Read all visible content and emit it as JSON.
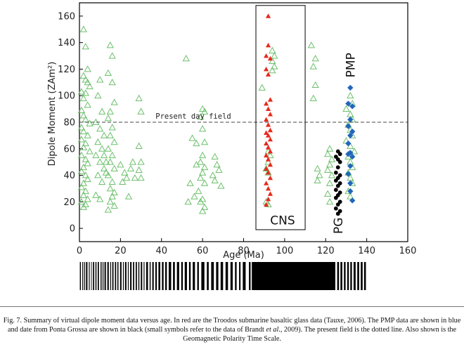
{
  "chart_data": {
    "type": "scatter",
    "xlabel": "Age (Ma)",
    "ylabel": "Dipole Moment (ZAm²)",
    "xlim": [
      0,
      160
    ],
    "ylim": [
      -10,
      170
    ],
    "x_ticks": [
      "0",
      "20",
      "40",
      "60",
      "80",
      "100",
      "120",
      "140",
      "160"
    ],
    "y_ticks": [
      "0",
      "20",
      "40",
      "60",
      "80",
      "100",
      "120",
      "140",
      "160"
    ],
    "grid": false,
    "reference_line": {
      "y": 80,
      "style": "dashed",
      "label": "Present day field"
    },
    "cns_box": {
      "x0": 86,
      "x1": 110,
      "y0": -1,
      "y1": 168,
      "label": "CNS"
    },
    "labels": {
      "pg": "PG",
      "pmp": "PMP"
    },
    "series": [
      {
        "name": "",
        "marker": "open-triangle",
        "color": "#6cc06c",
        "points": [
          [
            2,
            150
          ],
          [
            3,
            137
          ],
          [
            4,
            120
          ],
          [
            2,
            115
          ],
          [
            3,
            112
          ],
          [
            4,
            110
          ],
          [
            5,
            107
          ],
          [
            1,
            103
          ],
          [
            3,
            102
          ],
          [
            2,
            98
          ],
          [
            4,
            93
          ],
          [
            1,
            89
          ],
          [
            2,
            85
          ],
          [
            3,
            82
          ],
          [
            5,
            79
          ],
          [
            1,
            76
          ],
          [
            2,
            73
          ],
          [
            4,
            70
          ],
          [
            1,
            67
          ],
          [
            3,
            64
          ],
          [
            2,
            61
          ],
          [
            5,
            58
          ],
          [
            1,
            55
          ],
          [
            3,
            52
          ],
          [
            4,
            49
          ],
          [
            2,
            46
          ],
          [
            1,
            43
          ],
          [
            3,
            40
          ],
          [
            4,
            37
          ],
          [
            2,
            34
          ],
          [
            1,
            31
          ],
          [
            3,
            28
          ],
          [
            2,
            25
          ],
          [
            4,
            22
          ],
          [
            1,
            20
          ],
          [
            3,
            18
          ],
          [
            2,
            16
          ],
          [
            10,
            112
          ],
          [
            9,
            100
          ],
          [
            11,
            88
          ],
          [
            8,
            80
          ],
          [
            10,
            75
          ],
          [
            12,
            70
          ],
          [
            9,
            65
          ],
          [
            11,
            60
          ],
          [
            8,
            55
          ],
          [
            10,
            50
          ],
          [
            12,
            45
          ],
          [
            9,
            40
          ],
          [
            11,
            35
          ],
          [
            8,
            25
          ],
          [
            10,
            22
          ],
          [
            12,
            55
          ],
          [
            13,
            50
          ],
          [
            13,
            42
          ],
          [
            15,
            138
          ],
          [
            16,
            130
          ],
          [
            14,
            117
          ],
          [
            16,
            110
          ],
          [
            17,
            95
          ],
          [
            15,
            88
          ],
          [
            14,
            83
          ],
          [
            16,
            76
          ],
          [
            15,
            70
          ],
          [
            17,
            65
          ],
          [
            14,
            60
          ],
          [
            16,
            55
          ],
          [
            15,
            50
          ],
          [
            17,
            45
          ],
          [
            14,
            40
          ],
          [
            16,
            35
          ],
          [
            15,
            30
          ],
          [
            17,
            27
          ],
          [
            16,
            24
          ],
          [
            15,
            20
          ],
          [
            17,
            17
          ],
          [
            14,
            14
          ],
          [
            20,
            48
          ],
          [
            22,
            42
          ],
          [
            23,
            38
          ],
          [
            21,
            35
          ],
          [
            24,
            24
          ],
          [
            25,
            45
          ],
          [
            26,
            50
          ],
          [
            27,
            38
          ],
          [
            29,
            98
          ],
          [
            30,
            88
          ],
          [
            29,
            62
          ],
          [
            30,
            50
          ],
          [
            29,
            44
          ],
          [
            30,
            38
          ],
          [
            52,
            128
          ],
          [
            54,
            34
          ],
          [
            55,
            68
          ],
          [
            56,
            24
          ],
          [
            57,
            64
          ],
          [
            58,
            28
          ],
          [
            53,
            20
          ],
          [
            57,
            48
          ],
          [
            60,
            90
          ],
          [
            61,
            88
          ],
          [
            59,
            84
          ],
          [
            60,
            75
          ],
          [
            61,
            65
          ],
          [
            60,
            55
          ],
          [
            59,
            50
          ],
          [
            61,
            46
          ],
          [
            60,
            42
          ],
          [
            59,
            38
          ],
          [
            61,
            34
          ],
          [
            60,
            22
          ],
          [
            59,
            20
          ],
          [
            61,
            16
          ],
          [
            60,
            13
          ],
          [
            66,
            54
          ],
          [
            67,
            48
          ],
          [
            65,
            40
          ],
          [
            68,
            44
          ],
          [
            66,
            36
          ],
          [
            69,
            32
          ],
          [
            89,
            106
          ],
          [
            92,
            58
          ],
          [
            93,
            55
          ],
          [
            92,
            50
          ],
          [
            91,
            45
          ],
          [
            92,
            42
          ],
          [
            91,
            20
          ],
          [
            92,
            18
          ],
          [
            94,
            134
          ],
          [
            95,
            130
          ],
          [
            94,
            126
          ],
          [
            95,
            122
          ],
          [
            94,
            119
          ],
          [
            113,
            138
          ],
          [
            115,
            128
          ],
          [
            114,
            122
          ],
          [
            115,
            108
          ],
          [
            114,
            98
          ],
          [
            116,
            45
          ],
          [
            117,
            40
          ],
          [
            116,
            36
          ],
          [
            122,
            60
          ],
          [
            121,
            56
          ],
          [
            123,
            52
          ],
          [
            122,
            48
          ],
          [
            121,
            44
          ],
          [
            123,
            40
          ],
          [
            122,
            34
          ],
          [
            121,
            26
          ],
          [
            122,
            20
          ],
          [
            132,
            100
          ],
          [
            133,
            94
          ],
          [
            130,
            90
          ],
          [
            132,
            86
          ],
          [
            133,
            82
          ],
          [
            131,
            78
          ],
          [
            132,
            74
          ],
          [
            133,
            70
          ],
          [
            130,
            66
          ],
          [
            132,
            62
          ],
          [
            134,
            58
          ],
          [
            131,
            54
          ],
          [
            132,
            50
          ],
          [
            133,
            46
          ],
          [
            131,
            42
          ],
          [
            132,
            38
          ],
          [
            133,
            34
          ],
          [
            131,
            28
          ],
          [
            132,
            24
          ]
        ]
      },
      {
        "name": "",
        "marker": "filled-triangle",
        "color": "#e8281c",
        "points": [
          [
            92,
            160
          ],
          [
            92,
            138
          ],
          [
            91,
            130
          ],
          [
            93,
            128
          ],
          [
            91,
            120
          ],
          [
            92,
            116
          ],
          [
            93,
            97
          ],
          [
            91,
            94
          ],
          [
            92,
            90
          ],
          [
            93,
            86
          ],
          [
            91,
            82
          ],
          [
            92,
            78
          ],
          [
            93,
            74
          ],
          [
            91,
            72
          ],
          [
            92,
            70
          ],
          [
            93,
            67
          ],
          [
            91,
            64
          ],
          [
            92,
            61
          ],
          [
            93,
            58
          ],
          [
            91,
            55
          ],
          [
            92,
            52
          ],
          [
            93,
            48
          ],
          [
            91,
            45
          ],
          [
            92,
            42
          ],
          [
            93,
            38
          ],
          [
            91,
            34
          ],
          [
            92,
            30
          ],
          [
            93,
            26
          ],
          [
            92,
            22
          ],
          [
            91,
            18
          ]
        ]
      },
      {
        "name": "",
        "marker": "filled-diamond",
        "color": "#2266bb",
        "points": [
          [
            132,
            106
          ],
          [
            131,
            94
          ],
          [
            133,
            92
          ],
          [
            132,
            82
          ],
          [
            131,
            77
          ],
          [
            133,
            73
          ],
          [
            132,
            70
          ],
          [
            131,
            64
          ],
          [
            132,
            57
          ],
          [
            131,
            56
          ],
          [
            133,
            54
          ],
          [
            132,
            47
          ],
          [
            131,
            41
          ],
          [
            132,
            34
          ],
          [
            132,
            28
          ],
          [
            133,
            21
          ]
        ]
      },
      {
        "name": "",
        "marker": "filled-circle",
        "color": "#000000",
        "points": [
          [
            126,
            58
          ],
          [
            127,
            56
          ],
          [
            125,
            54
          ],
          [
            126,
            52
          ],
          [
            127,
            50
          ],
          [
            126,
            46
          ],
          [
            125,
            42
          ],
          [
            127,
            40
          ],
          [
            126,
            38
          ],
          [
            125,
            36
          ],
          [
            127,
            34
          ],
          [
            126,
            32
          ],
          [
            125,
            29
          ],
          [
            127,
            27
          ],
          [
            126,
            25
          ],
          [
            125,
            23
          ],
          [
            127,
            20
          ],
          [
            126,
            18
          ],
          [
            125,
            15
          ],
          [
            127,
            13
          ],
          [
            126,
            11
          ]
        ]
      }
    ]
  },
  "gpts": {
    "xlim": [
      0,
      160
    ],
    "intervals": [
      [
        0.2,
        0.7
      ],
      [
        1.4,
        1.8
      ],
      [
        2.3,
        2.7
      ],
      [
        3.2,
        3.9
      ],
      [
        4.6,
        5.0
      ],
      [
        5.7,
        6.0
      ],
      [
        6.6,
        7.2
      ],
      [
        7.8,
        8.3
      ],
      [
        8.9,
        9.5
      ],
      [
        10.3,
        10.8
      ],
      [
        11.3,
        11.7
      ],
      [
        12.2,
        12.9
      ],
      [
        13.6,
        14.3
      ],
      [
        15.0,
        15.4
      ],
      [
        16.0,
        16.6
      ],
      [
        17.3,
        17.9
      ],
      [
        18.5,
        19.0
      ],
      [
        19.8,
        20.5
      ],
      [
        21.2,
        21.6
      ],
      [
        22.2,
        22.9
      ],
      [
        23.6,
        24.0
      ],
      [
        24.7,
        25.4
      ],
      [
        26.1,
        26.7
      ],
      [
        27.4,
        28.0
      ],
      [
        28.7,
        29.2
      ],
      [
        29.9,
        30.6
      ],
      [
        31.3,
        31.7
      ],
      [
        32.5,
        33.4
      ],
      [
        34.2,
        34.7
      ],
      [
        35.5,
        36.2
      ],
      [
        37.0,
        37.7
      ],
      [
        38.5,
        39.4
      ],
      [
        40.2,
        41.0
      ],
      [
        41.8,
        42.6
      ],
      [
        43.5,
        44.7
      ],
      [
        45.6,
        46.5
      ],
      [
        47.5,
        48.6
      ],
      [
        49.6,
        50.4
      ],
      [
        51.3,
        52.4
      ],
      [
        53.4,
        54.2
      ],
      [
        55.2,
        56.3
      ],
      [
        57.4,
        58.2
      ],
      [
        59.4,
        60.9
      ],
      [
        62.1,
        63.0
      ],
      [
        64.2,
        65.5
      ],
      [
        66.6,
        67.7
      ],
      [
        68.8,
        70.0
      ],
      [
        71.2,
        72.4
      ],
      [
        73.6,
        74.7
      ],
      [
        75.8,
        76.6
      ],
      [
        77.8,
        78.5
      ],
      [
        79.6,
        81.0
      ],
      [
        82.6,
        83.4
      ],
      [
        84.0,
        124.7
      ],
      [
        125.6,
        126.5
      ],
      [
        127.2,
        128.1
      ],
      [
        128.9,
        129.7
      ],
      [
        130.5,
        131.3
      ],
      [
        132.0,
        132.8
      ],
      [
        133.6,
        134.6
      ],
      [
        135.4,
        136.3
      ],
      [
        137.1,
        138.0
      ],
      [
        138.7,
        139.6
      ]
    ]
  },
  "caption": {
    "p1": "Fig. 7. Summary of virtual dipole moment data versus age. In red are the Troodos submarine basaltic glass data (Tauxe, 2006). The PMP data are shown in blue and date from Ponta Grossa are shown in black (small symbols refer to the data of Brandt ",
    "em": "et al",
    "p2": "., 2009). The present field is the dotted line. Also shown is the Geomagnetic Polarity Time Scale."
  }
}
